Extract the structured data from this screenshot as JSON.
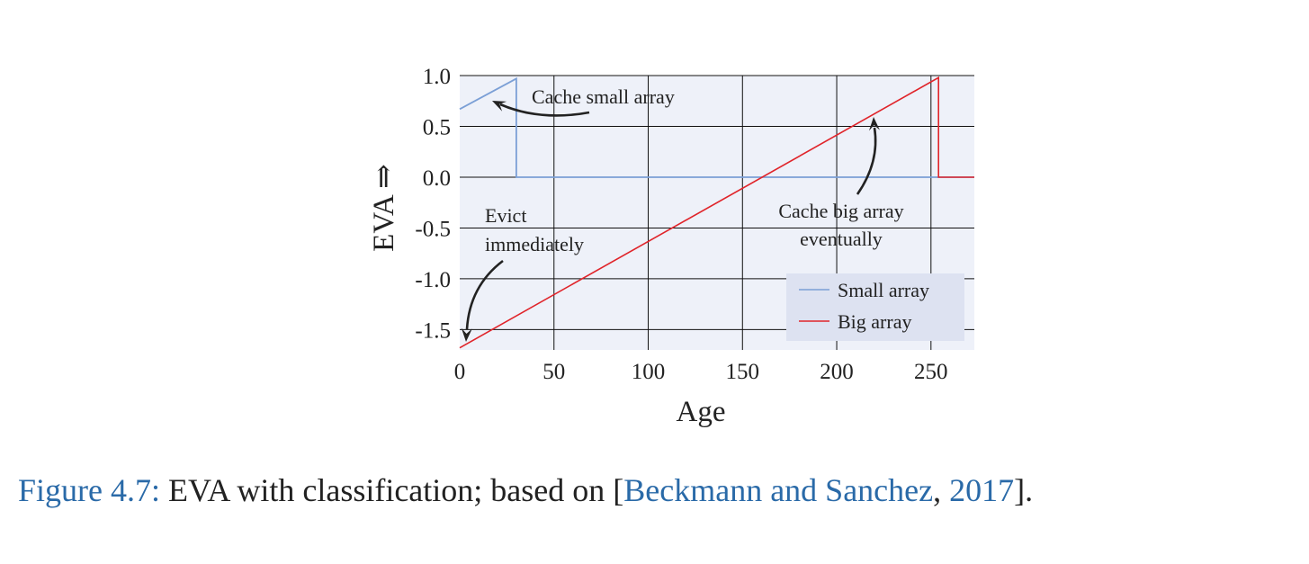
{
  "chart_data": {
    "type": "line",
    "title": "",
    "xlabel": "Age",
    "ylabel": "EVA ⇒",
    "xlim": [
      0,
      273
    ],
    "ylim": [
      -1.7,
      1.0
    ],
    "xticks": [
      0,
      50,
      100,
      150,
      200,
      250
    ],
    "xtick_labels": [
      "0",
      "50",
      "100",
      "150",
      "200",
      "250"
    ],
    "yticks": [
      1.0,
      0.5,
      0.0,
      -0.5,
      -1.0,
      -1.5
    ],
    "ytick_labels": [
      "1.0",
      "0.5",
      "0.0",
      "-0.5",
      "-1.0",
      "-1.5"
    ],
    "grid": true,
    "legend_position": "bottom-right",
    "series": [
      {
        "name": "Small array",
        "color": "#7b9fd6",
        "x": [
          0,
          30,
          30,
          273
        ],
        "y": [
          0.67,
          0.97,
          0.0,
          0.0
        ]
      },
      {
        "name": "Big array",
        "color": "#e0242a",
        "x": [
          0,
          254,
          254,
          273
        ],
        "y": [
          -1.68,
          0.98,
          0.0,
          0.0
        ]
      }
    ],
    "annotations": [
      {
        "text": "Cache small array",
        "lines": [
          "Cache small array"
        ],
        "at": [
          17,
          0.75
        ]
      },
      {
        "text": "Cache big array eventually",
        "lines": [
          "Cache big array",
          "eventually"
        ],
        "at": [
          220,
          0.6
        ]
      },
      {
        "text": "Evict immediately",
        "lines": [
          "Evict",
          "immediately"
        ],
        "at": [
          3,
          -1.6
        ]
      }
    ]
  },
  "caption": {
    "label": "Figure 4.7:",
    "text": " EVA with classification; based on [",
    "cite_text": "Beckmann and Sanchez",
    "sep": ", ",
    "cite_year": "2017",
    "end": "]."
  },
  "colors": {
    "plot_bg": "#eef1f9",
    "legend_bg": "#dde2f1",
    "grid": "#111111",
    "caption_link": "#2a6aa8"
  }
}
